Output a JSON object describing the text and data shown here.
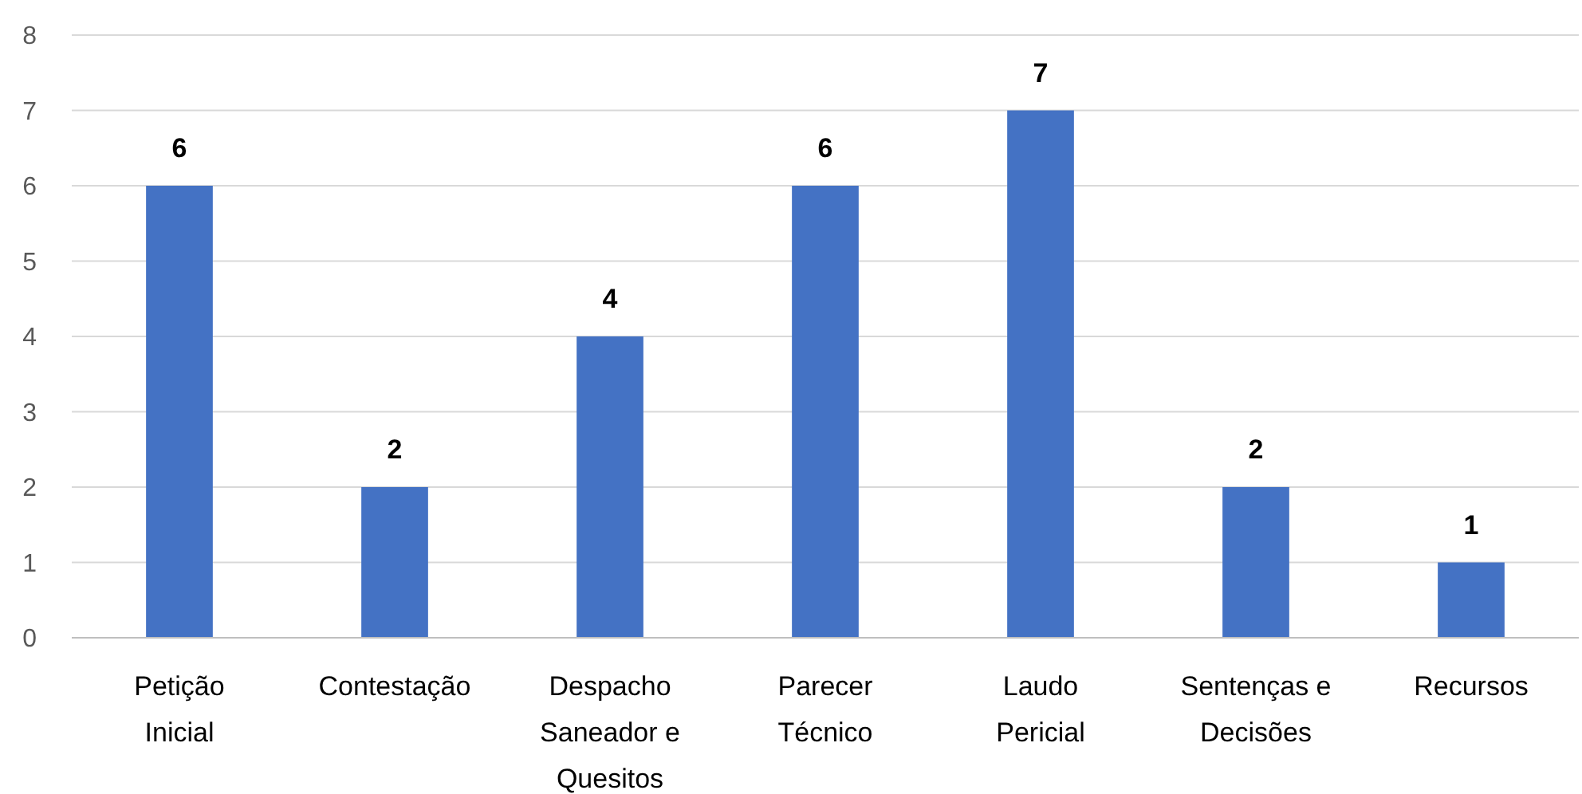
{
  "chart_data": {
    "type": "bar",
    "categories": [
      "Petição Inicial",
      "Contestação",
      "Despacho Saneador e Quesitos",
      "Parecer Técnico",
      "Laudo Pericial",
      "Sentenças e Decisões",
      "Recursos"
    ],
    "values": [
      6,
      2,
      4,
      6,
      7,
      2,
      1
    ],
    "color": "#4472c4",
    "ylim": [
      0,
      8
    ],
    "yticks": [
      0,
      1,
      2,
      3,
      4,
      5,
      6,
      7,
      8
    ],
    "grid": "y",
    "data_labels": true
  }
}
